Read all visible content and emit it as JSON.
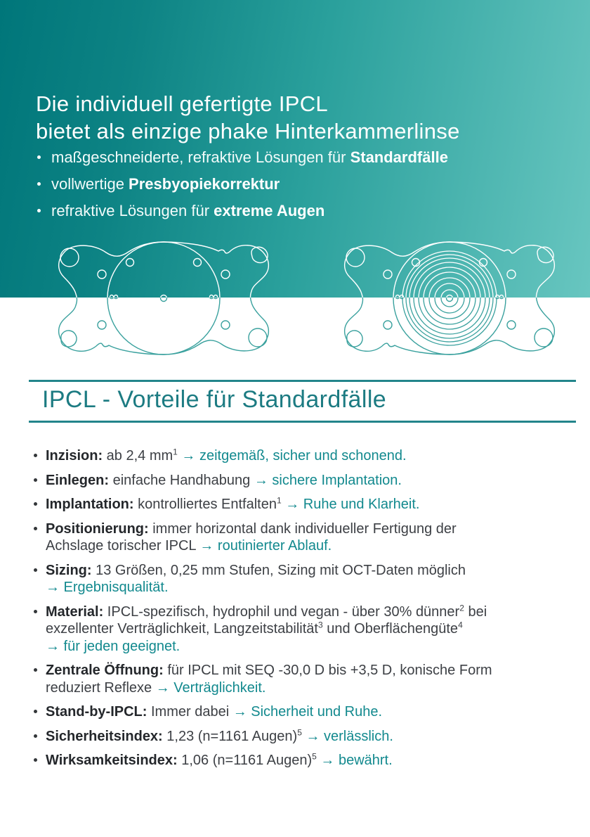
{
  "colors": {
    "banner_gradient_left": "#00767a",
    "banner_gradient_mid": "#2aa09c",
    "banner_gradient_right": "#68c6c0",
    "section_title_color": "#1c7b82",
    "rule_color": "#23858b",
    "body_text": "#3d4045",
    "body_bold": "#24272b",
    "teal_text": "#12898e",
    "lens_stroke_on_teal": "#ffffff",
    "lens_stroke_on_white": "#3aa19e"
  },
  "banner": {
    "title_line1": "Die individuell gefertigte IPCL",
    "title_line2": "bietet als einzige phake Hinterkammerlinse",
    "bullets": [
      {
        "segments": [
          {
            "t": "maßgeschneiderte, refraktive Lösungen für ",
            "s": "w"
          },
          {
            "t": "Standardfälle",
            "s": "wb"
          }
        ]
      },
      {
        "segments": [
          {
            "t": "vollwertige ",
            "s": "w"
          },
          {
            "t": "Presbyopiekorrektur",
            "s": "wb"
          }
        ]
      },
      {
        "segments": [
          {
            "t": "refraktive Lösungen für ",
            "s": "w"
          },
          {
            "t": "extreme Augen",
            "s": "wb"
          }
        ]
      }
    ]
  },
  "illustrations": {
    "left": "standard-lens-drawing",
    "right": "presbyopic-lens-drawing-with-rings"
  },
  "section": {
    "title": "IPCL - Vorteile für Standardfälle",
    "items": [
      {
        "segments": [
          {
            "t": "Inzision:",
            "s": "b"
          },
          {
            "t": " ab 2,4 mm",
            "s": "n"
          },
          {
            "t": "1",
            "s": "sup"
          },
          {
            "t": " ",
            "s": "n"
          },
          {
            "t": "→ zeitgemäß, sicher und schonend.",
            "s": "t"
          }
        ]
      },
      {
        "segments": [
          {
            "t": "Einlegen:",
            "s": "b"
          },
          {
            "t": " einfache Handhabung ",
            "s": "n"
          },
          {
            "t": "→ sichere Implantation.",
            "s": "t"
          }
        ]
      },
      {
        "segments": [
          {
            "t": "Implantation:",
            "s": "b"
          },
          {
            "t": " kontrolliertes Entfalten",
            "s": "n"
          },
          {
            "t": "1",
            "s": "sup"
          },
          {
            "t": " ",
            "s": "n"
          },
          {
            "t": "→ Ruhe und Klarheit.",
            "s": "t"
          }
        ]
      },
      {
        "segments": [
          {
            "t": "Positionierung:",
            "s": "b"
          },
          {
            "t": " immer horizontal dank individueller Fertigung der",
            "s": "n"
          },
          {
            "s": "br"
          },
          {
            "t": "Achslage torischer IPCL ",
            "s": "n"
          },
          {
            "t": "→ routinierter Ablauf.",
            "s": "t"
          }
        ]
      },
      {
        "segments": [
          {
            "t": "Sizing:",
            "s": "b"
          },
          {
            "t": " 13 Größen, 0,25 mm Stufen, Sizing mit OCT-Daten möglich",
            "s": "n"
          },
          {
            "s": "br"
          },
          {
            "t": "→ Ergebnisqualität.",
            "s": "t"
          }
        ]
      },
      {
        "segments": [
          {
            "t": "Material:",
            "s": "b"
          },
          {
            "t": " IPCL-spezifisch, hydrophil und vegan - über 30% dünner",
            "s": "n"
          },
          {
            "t": "2",
            "s": "sup"
          },
          {
            "t": " bei",
            "s": "n"
          },
          {
            "s": "br"
          },
          {
            "t": "exzellenter Verträglichkeit, Langzeitstabilität",
            "s": "n"
          },
          {
            "t": "3",
            "s": "sup"
          },
          {
            "t": " und Oberflächengüte",
            "s": "n"
          },
          {
            "t": "4",
            "s": "sup"
          },
          {
            "s": "br"
          },
          {
            "t": "→ für jeden geeignet.",
            "s": "t"
          }
        ]
      },
      {
        "segments": [
          {
            "t": "Zentrale Öffnung:",
            "s": "b"
          },
          {
            "t": " für IPCL mit SEQ -30,0 D bis +3,5 D, konische Form",
            "s": "n"
          },
          {
            "s": "br"
          },
          {
            "t": "reduziert Reflexe ",
            "s": "n"
          },
          {
            "t": "→ Verträglichkeit.",
            "s": "t"
          }
        ]
      },
      {
        "segments": [
          {
            "t": "Stand-by-IPCL:",
            "s": "b"
          },
          {
            "t": " Immer dabei ",
            "s": "n"
          },
          {
            "t": "→ Sicherheit und Ruhe.",
            "s": "t"
          }
        ]
      },
      {
        "segments": [
          {
            "t": "Sicherheitsindex:",
            "s": "b"
          },
          {
            "t": " 1,23 (n=1161 Augen)",
            "s": "n"
          },
          {
            "t": "5",
            "s": "sup"
          },
          {
            "t": " ",
            "s": "n"
          },
          {
            "t": "→ verlässlich.",
            "s": "t"
          }
        ]
      },
      {
        "segments": [
          {
            "t": "Wirksamkeitsindex:",
            "s": "b"
          },
          {
            "t": " 1,06 (n=1161 Augen)",
            "s": "n"
          },
          {
            "t": "5",
            "s": "sup"
          },
          {
            "t": " ",
            "s": "n"
          },
          {
            "t": "→ bewährt.",
            "s": "t"
          }
        ]
      }
    ]
  }
}
